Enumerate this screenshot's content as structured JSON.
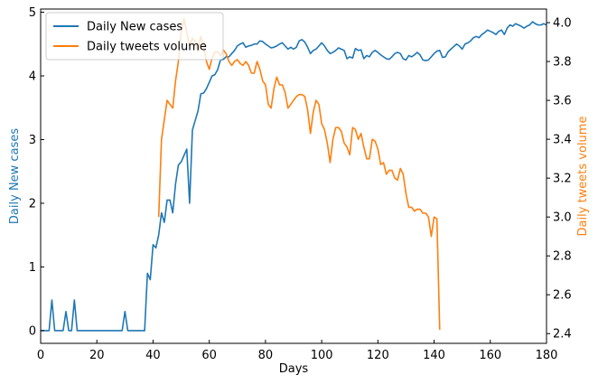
{
  "chart_data": {
    "type": "line",
    "title": "",
    "xlabel": "Days",
    "xlim": [
      0,
      180
    ],
    "x_ticks": [
      0,
      20,
      40,
      60,
      80,
      100,
      120,
      140,
      160,
      180
    ],
    "y_left": {
      "label": "Daily New cases",
      "color": "#1f77b4",
      "lim": [
        -0.2,
        5.05
      ],
      "ticks": [
        0,
        1,
        2,
        3,
        4,
        5
      ]
    },
    "y_right": {
      "label": "Daily tweets volume",
      "color": "#ff7f0e",
      "lim": [
        2.35,
        4.07
      ],
      "ticks": [
        2.4,
        2.6,
        2.8,
        3.0,
        3.2,
        3.4,
        3.6,
        3.8,
        4.0
      ]
    },
    "legend": {
      "placement": "upper-left",
      "entries": [
        "Daily New cases",
        "Daily tweets volume"
      ]
    },
    "series": [
      {
        "name": "Daily New cases",
        "axis": "left",
        "color": "#1f77b4",
        "points": [
          [
            0,
            0
          ],
          [
            3,
            0
          ],
          [
            4,
            0.48
          ],
          [
            5,
            0
          ],
          [
            8,
            0
          ],
          [
            9,
            0.3
          ],
          [
            10,
            0
          ],
          [
            11,
            0
          ],
          [
            12,
            0.48
          ],
          [
            13,
            0
          ],
          [
            29,
            0
          ],
          [
            30,
            0.3
          ],
          [
            31,
            0
          ],
          [
            37,
            0
          ],
          [
            38,
            0.9
          ],
          [
            39,
            0.8
          ],
          [
            40,
            1.35
          ],
          [
            41,
            1.3
          ],
          [
            42,
            1.5
          ],
          [
            43,
            1.85
          ],
          [
            44,
            1.7
          ],
          [
            45,
            2.05
          ],
          [
            46,
            2.05
          ],
          [
            47,
            1.85
          ],
          [
            48,
            2.3
          ],
          [
            49,
            2.6
          ],
          [
            50,
            2.65
          ],
          [
            51,
            2.75
          ],
          [
            52,
            2.85
          ],
          [
            53,
            2.0
          ],
          [
            54,
            3.15
          ],
          [
            55,
            3.3
          ],
          [
            56,
            3.45
          ],
          [
            57,
            3.72
          ],
          [
            58,
            3.73
          ],
          [
            59,
            3.8
          ],
          [
            60,
            3.9
          ],
          [
            61,
            4.0
          ],
          [
            62,
            4.02
          ],
          [
            63,
            4.1
          ],
          [
            64,
            4.25
          ],
          [
            65,
            4.26
          ],
          [
            66,
            4.3
          ],
          [
            67,
            4.3
          ],
          [
            68,
            4.35
          ],
          [
            69,
            4.4
          ],
          [
            70,
            4.47
          ],
          [
            71,
            4.5
          ],
          [
            72,
            4.52
          ],
          [
            73,
            4.45
          ],
          [
            74,
            4.47
          ],
          [
            75,
            4.48
          ],
          [
            76,
            4.5
          ],
          [
            77,
            4.5
          ],
          [
            78,
            4.55
          ],
          [
            79,
            4.54
          ],
          [
            80,
            4.5
          ],
          [
            81,
            4.47
          ],
          [
            82,
            4.44
          ],
          [
            83,
            4.45
          ],
          [
            84,
            4.47
          ],
          [
            85,
            4.5
          ],
          [
            86,
            4.52
          ],
          [
            87,
            4.47
          ],
          [
            88,
            4.42
          ],
          [
            89,
            4.45
          ],
          [
            90,
            4.42
          ],
          [
            91,
            4.45
          ],
          [
            92,
            4.55
          ],
          [
            93,
            4.57
          ],
          [
            94,
            4.53
          ],
          [
            95,
            4.45
          ],
          [
            96,
            4.35
          ],
          [
            97,
            4.4
          ],
          [
            98,
            4.42
          ],
          [
            99,
            4.47
          ],
          [
            100,
            4.52
          ],
          [
            101,
            4.47
          ],
          [
            102,
            4.4
          ],
          [
            103,
            4.35
          ],
          [
            104,
            4.37
          ],
          [
            105,
            4.4
          ],
          [
            106,
            4.44
          ],
          [
            107,
            4.42
          ],
          [
            108,
            4.4
          ],
          [
            109,
            4.27
          ],
          [
            110,
            4.3
          ],
          [
            111,
            4.28
          ],
          [
            112,
            4.43
          ],
          [
            113,
            4.4
          ],
          [
            114,
            4.41
          ],
          [
            115,
            4.27
          ],
          [
            116,
            4.32
          ],
          [
            117,
            4.3
          ],
          [
            118,
            4.37
          ],
          [
            119,
            4.4
          ],
          [
            120,
            4.37
          ],
          [
            121,
            4.33
          ],
          [
            122,
            4.3
          ],
          [
            123,
            4.27
          ],
          [
            124,
            4.26
          ],
          [
            125,
            4.3
          ],
          [
            126,
            4.35
          ],
          [
            127,
            4.37
          ],
          [
            128,
            4.35
          ],
          [
            129,
            4.27
          ],
          [
            130,
            4.25
          ],
          [
            131,
            4.32
          ],
          [
            132,
            4.3
          ],
          [
            133,
            4.33
          ],
          [
            134,
            4.37
          ],
          [
            135,
            4.33
          ],
          [
            136,
            4.25
          ],
          [
            137,
            4.24
          ],
          [
            138,
            4.25
          ],
          [
            139,
            4.3
          ],
          [
            140,
            4.35
          ],
          [
            141,
            4.39
          ],
          [
            142,
            4.4
          ],
          [
            143,
            4.29
          ],
          [
            144,
            4.3
          ],
          [
            145,
            4.38
          ],
          [
            146,
            4.42
          ],
          [
            147,
            4.46
          ],
          [
            148,
            4.5
          ],
          [
            149,
            4.47
          ],
          [
            150,
            4.42
          ],
          [
            151,
            4.5
          ],
          [
            152,
            4.52
          ],
          [
            153,
            4.55
          ],
          [
            154,
            4.6
          ],
          [
            155,
            4.62
          ],
          [
            156,
            4.6
          ],
          [
            157,
            4.65
          ],
          [
            158,
            4.68
          ],
          [
            159,
            4.72
          ],
          [
            160,
            4.7
          ],
          [
            161,
            4.68
          ],
          [
            162,
            4.65
          ],
          [
            163,
            4.7
          ],
          [
            164,
            4.72
          ],
          [
            165,
            4.65
          ],
          [
            166,
            4.75
          ],
          [
            167,
            4.8
          ],
          [
            168,
            4.78
          ],
          [
            169,
            4.82
          ],
          [
            170,
            4.8
          ],
          [
            171,
            4.78
          ],
          [
            172,
            4.75
          ],
          [
            173,
            4.78
          ],
          [
            174,
            4.8
          ],
          [
            175,
            4.85
          ],
          [
            176,
            4.82
          ],
          [
            177,
            4.8
          ],
          [
            178,
            4.8
          ],
          [
            179,
            4.82
          ],
          [
            180,
            4.8
          ]
        ]
      },
      {
        "name": "Daily tweets volume",
        "axis": "right",
        "color": "#ff7f0e",
        "points": [
          [
            42,
            3.0
          ],
          [
            43,
            3.4
          ],
          [
            44,
            3.5
          ],
          [
            45,
            3.6
          ],
          [
            46,
            3.58
          ],
          [
            47,
            3.56
          ],
          [
            48,
            3.7
          ],
          [
            49,
            3.8
          ],
          [
            50,
            3.95
          ],
          [
            51,
            4.02
          ],
          [
            52,
            3.95
          ],
          [
            53,
            3.88
          ],
          [
            54,
            3.92
          ],
          [
            55,
            3.9
          ],
          [
            56,
            3.85
          ],
          [
            57,
            3.93
          ],
          [
            58,
            3.88
          ],
          [
            59,
            3.8
          ],
          [
            60,
            3.76
          ],
          [
            61,
            3.82
          ],
          [
            62,
            3.85
          ],
          [
            63,
            3.85
          ],
          [
            64,
            3.83
          ],
          [
            65,
            3.86
          ],
          [
            66,
            3.84
          ],
          [
            67,
            3.8
          ],
          [
            68,
            3.78
          ],
          [
            69,
            3.8
          ],
          [
            70,
            3.81
          ],
          [
            71,
            3.79
          ],
          [
            72,
            3.78
          ],
          [
            73,
            3.8
          ],
          [
            74,
            3.78
          ],
          [
            75,
            3.74
          ],
          [
            76,
            3.74
          ],
          [
            77,
            3.8
          ],
          [
            78,
            3.76
          ],
          [
            79,
            3.7
          ],
          [
            80,
            3.68
          ],
          [
            81,
            3.58
          ],
          [
            82,
            3.56
          ],
          [
            83,
            3.66
          ],
          [
            84,
            3.72
          ],
          [
            85,
            3.68
          ],
          [
            86,
            3.68
          ],
          [
            87,
            3.64
          ],
          [
            88,
            3.56
          ],
          [
            89,
            3.58
          ],
          [
            90,
            3.6
          ],
          [
            91,
            3.62
          ],
          [
            92,
            3.63
          ],
          [
            93,
            3.63
          ],
          [
            94,
            3.62
          ],
          [
            95,
            3.55
          ],
          [
            96,
            3.43
          ],
          [
            97,
            3.54
          ],
          [
            98,
            3.6
          ],
          [
            99,
            3.58
          ],
          [
            100,
            3.48
          ],
          [
            101,
            3.45
          ],
          [
            102,
            3.38
          ],
          [
            103,
            3.28
          ],
          [
            104,
            3.4
          ],
          [
            105,
            3.46
          ],
          [
            106,
            3.46
          ],
          [
            107,
            3.44
          ],
          [
            108,
            3.38
          ],
          [
            109,
            3.36
          ],
          [
            110,
            3.32
          ],
          [
            111,
            3.46
          ],
          [
            112,
            3.45
          ],
          [
            113,
            3.4
          ],
          [
            114,
            3.43
          ],
          [
            115,
            3.36
          ],
          [
            116,
            3.3
          ],
          [
            117,
            3.3
          ],
          [
            118,
            3.4
          ],
          [
            119,
            3.39
          ],
          [
            120,
            3.35
          ],
          [
            121,
            3.27
          ],
          [
            122,
            3.28
          ],
          [
            123,
            3.22
          ],
          [
            124,
            3.24
          ],
          [
            125,
            3.24
          ],
          [
            126,
            3.2
          ],
          [
            127,
            3.19
          ],
          [
            128,
            3.25
          ],
          [
            129,
            3.22
          ],
          [
            130,
            3.12
          ],
          [
            131,
            3.05
          ],
          [
            132,
            3.05
          ],
          [
            133,
            3.03
          ],
          [
            134,
            3.04
          ],
          [
            135,
            3.04
          ],
          [
            136,
            3.02
          ],
          [
            137,
            3.02
          ],
          [
            138,
            3.0
          ],
          [
            139,
            2.9
          ],
          [
            140,
            3.0
          ],
          [
            141,
            2.99
          ],
          [
            142,
            2.42
          ]
        ]
      }
    ]
  }
}
